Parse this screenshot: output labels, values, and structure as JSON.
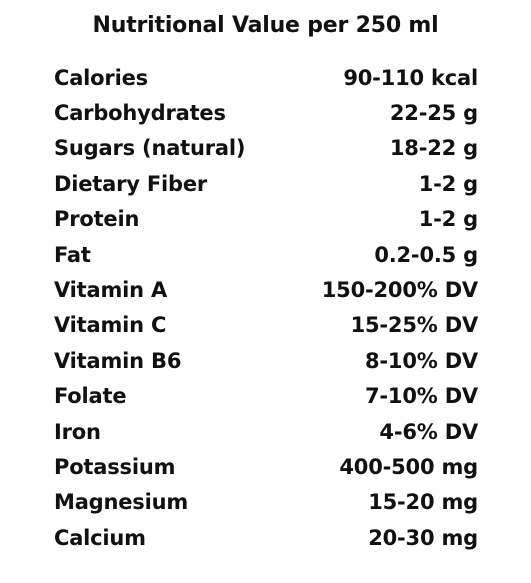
{
  "title": "Nutritional Value per 250 ml",
  "rows": [
    {
      "label": "Calories",
      "value": "90-110 kcal"
    },
    {
      "label": "Carbohydrates",
      "value": "22-25 g"
    },
    {
      "label": "Sugars (natural)",
      "value": "18-22 g"
    },
    {
      "label": "Dietary Fiber",
      "value": "1-2 g"
    },
    {
      "label": "Protein",
      "value": "1-2 g"
    },
    {
      "label": "Fat",
      "value": "0.2-0.5 g"
    },
    {
      "label": "Vitamin A",
      "value": "150-200% DV"
    },
    {
      "label": "Vitamin C",
      "value": "15-25% DV"
    },
    {
      "label": "Vitamin B6",
      "value": "8-10% DV"
    },
    {
      "label": "Folate",
      "value": "7-10% DV"
    },
    {
      "label": "Iron",
      "value": "4-6% DV"
    },
    {
      "label": "Potassium",
      "value": "400-500 mg"
    },
    {
      "label": "Magnesium",
      "value": "15-20 mg"
    },
    {
      "label": "Calcium",
      "value": "20-30 mg"
    }
  ]
}
